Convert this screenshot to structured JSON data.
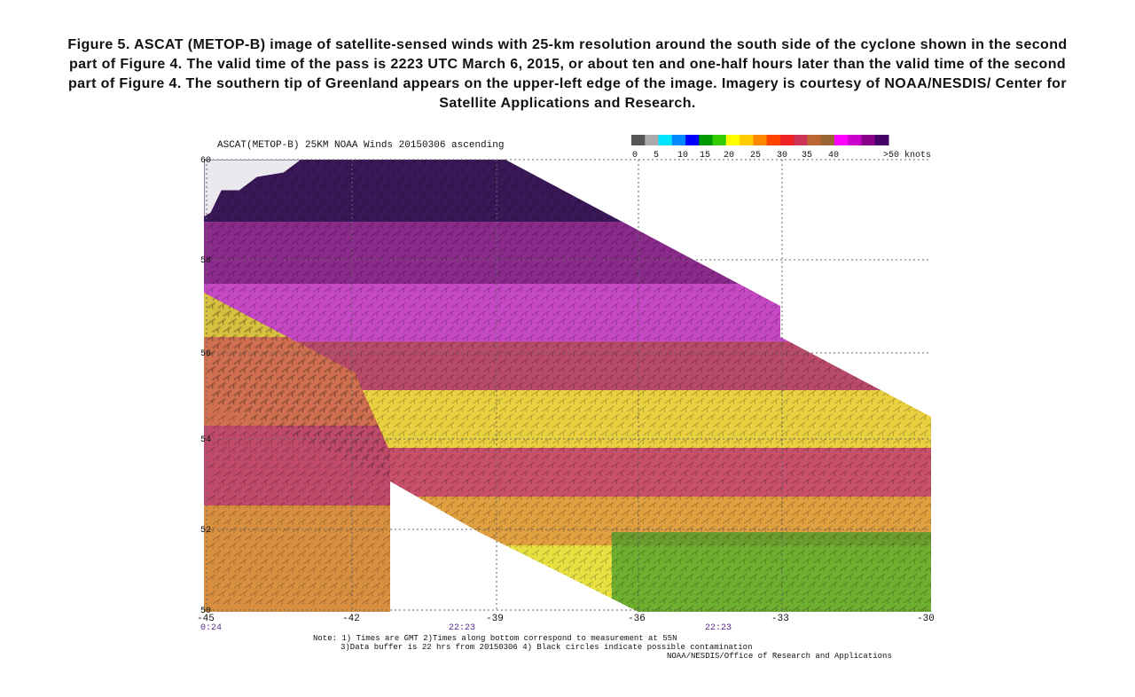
{
  "caption": "Figure 5. ASCAT (METOP-B) image of satellite-sensed winds with 25-km resolution around the south side of the cyclone shown in the second part of Figure 4. The valid time of the pass is 2223 UTC March 6, 2015, or about ten and one-half hours later than the valid time of the second part of Figure 4. The southern tip of Greenland appears on the upper-left edge of the image.  Imagery is courtesy of NOAA/NESDIS/ Center for Satellite Applications and Research.",
  "map": {
    "title": "ASCAT(METOP-B) 25KM NOAA Winds 20150306 ascending",
    "lon_ticks": [
      "-45",
      "-42",
      "-39",
      "-36",
      "-33",
      "-30"
    ],
    "lat_ticks": [
      "60",
      "58",
      "56",
      "54",
      "52",
      "50"
    ],
    "time_labels": [
      "0:24",
      "22:23",
      "22:23"
    ],
    "legend": {
      "labels": [
        "0",
        "5",
        "10",
        "15",
        "20",
        "25",
        "30",
        "35",
        "40",
        ">50 knots"
      ],
      "colors": [
        "#555555",
        "#aaaaaa",
        "#00e5ff",
        "#0088ff",
        "#0000ff",
        "#009900",
        "#33cc00",
        "#ffff00",
        "#ffcc00",
        "#ff8800",
        "#ff4400",
        "#ee2222",
        "#cc3355",
        "#bb6633",
        "#996633",
        "#ff00ff",
        "#cc00cc",
        "#880088",
        "#440066"
      ]
    },
    "notes": [
      "Note: 1) Times are GMT 2)Times along bottom correspond to measurement at 55N",
      "3)Data buffer is 22 hrs from 20150306 4) Black circles indicate possible contamination",
      "NOAA/NESDIS/Office of Research and Applications"
    ]
  }
}
